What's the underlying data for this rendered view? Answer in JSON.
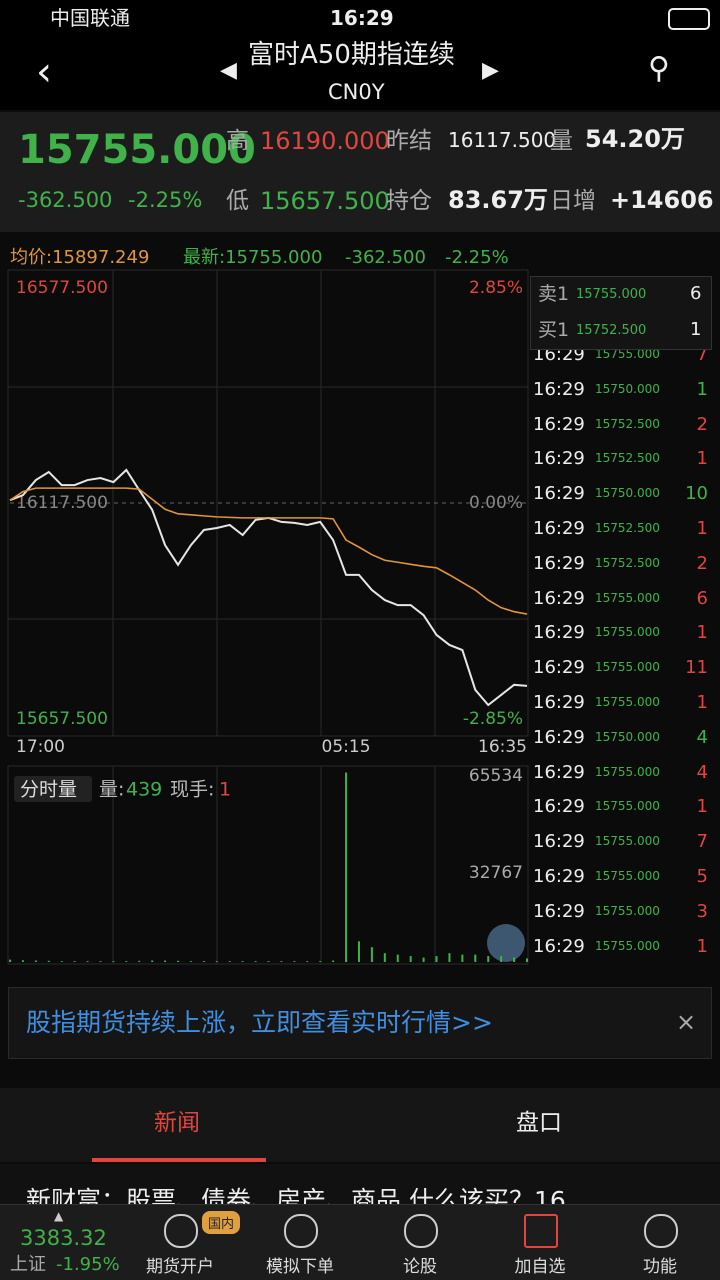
{
  "status_bar": {
    "carrier": "中国联通",
    "time": "16:29"
  },
  "header": {
    "title": "富时A50期指连续",
    "subtitle": "CN0Y"
  },
  "quote": {
    "last": "15755.000",
    "change": "-362.500",
    "change_pct": "-2.25%",
    "high_label": "高",
    "high": "16190.000",
    "prev_settle_label": "昨结",
    "prev_settle": "16117.500",
    "volume_label": "量",
    "volume": "54.20万",
    "low_label": "低",
    "low": "15657.500",
    "open_interest_label": "持仓",
    "open_interest": "83.67万",
    "daily_change_label": "日增",
    "daily_change": "+14606"
  },
  "info_line": {
    "avg": "均价:15897.249",
    "latest": "最新:15755.000",
    "change": "-362.500",
    "change_pct": "-2.25%"
  },
  "chart_data": [
    {
      "type": "line",
      "x": [
        0,
        1,
        2,
        3,
        4,
        5,
        6,
        7,
        8,
        9,
        10,
        11,
        12,
        13,
        14,
        15,
        16,
        17,
        18,
        19,
        20,
        21,
        22,
        23,
        24,
        25,
        26,
        27,
        28,
        29,
        30,
        31,
        32,
        33,
        34,
        35,
        36,
        37,
        38,
        39,
        40
      ],
      "xlim": [
        0,
        40
      ],
      "xticks": [
        {
          "value": 0,
          "label": "17:00"
        },
        {
          "value": 26,
          "label": "05:15"
        },
        {
          "value": 40,
          "label": "16:35"
        }
      ],
      "ylim": [
        15657.5,
        16577.5
      ],
      "yticks": [
        {
          "value": 15657.5,
          "label": "15657.500"
        },
        {
          "value": 16117.5,
          "label": "16117.500"
        },
        {
          "value": 16577.5,
          "label": "16577.500"
        }
      ],
      "y2lim": [
        -2.85,
        2.85
      ],
      "y2ticks": [
        {
          "value": -2.85,
          "label": "-2.85%"
        },
        {
          "value": 0,
          "label": "0.00%"
        },
        {
          "value": 2.85,
          "label": "2.85%"
        }
      ],
      "series": [
        {
          "color": "#e6e6e6",
          "values": [
            16123,
            16133,
            16163,
            16179,
            16153,
            16153,
            16163,
            16167,
            16159,
            16183,
            16143,
            16104,
            16034,
            15995,
            16034,
            16064,
            16068,
            16074,
            16054,
            16084,
            16088,
            16080,
            16078,
            16074,
            16080,
            16044,
            15975,
            15975,
            15945,
            15925,
            15915,
            15915,
            15895,
            15856,
            15836,
            15826,
            15747,
            15717,
            15737,
            15757,
            15755
          ]
        },
        {
          "color": "#e0953a",
          "values": [
            16123,
            16140,
            16147,
            16147,
            16147,
            16147,
            16147,
            16147,
            16147,
            16147,
            16145,
            16125,
            16105,
            16096,
            16094,
            16092,
            16090,
            16089,
            16088,
            16088,
            16088,
            16088,
            16088,
            16088,
            16088,
            16086,
            16044,
            16030,
            16015,
            16004,
            16000,
            15996,
            15992,
            15989,
            15975,
            15960,
            15945,
            15925,
            15910,
            15902,
            15897.249
          ]
        }
      ]
    },
    {
      "type": "bar",
      "title": "分时量",
      "volume_label": "量:",
      "volume": "439",
      "last_hand_label": "现手:",
      "last_hand": "1",
      "x": [
        0,
        1,
        2,
        3,
        4,
        5,
        6,
        7,
        8,
        9,
        10,
        11,
        12,
        13,
        14,
        15,
        16,
        17,
        18,
        19,
        20,
        21,
        22,
        23,
        24,
        25,
        26,
        27,
        28,
        29,
        30,
        31,
        32,
        33,
        34,
        35,
        36,
        37,
        38,
        39,
        40
      ],
      "xlim": [
        0,
        40
      ],
      "values": [
        800,
        600,
        500,
        400,
        300,
        300,
        300,
        300,
        300,
        300,
        400,
        500,
        500,
        400,
        300,
        300,
        300,
        300,
        300,
        300,
        300,
        300,
        300,
        300,
        300,
        500,
        64000,
        7000,
        5000,
        3000,
        2500,
        2000,
        1500,
        2000,
        3000,
        2500,
        2500,
        2000,
        2000,
        1500,
        1200
      ],
      "color": "#3fb24a",
      "ylim": [
        0,
        65534
      ],
      "yticks": [
        32767,
        65534
      ]
    }
  ],
  "order_book": {
    "sell": {
      "label": "卖1",
      "price": "15755.000",
      "qty": "6"
    },
    "buy": {
      "label": "买1",
      "price": "15752.500",
      "qty": "1"
    }
  },
  "trades": [
    {
      "time": "16:29",
      "price": "15755.000",
      "qty": "7",
      "color": "#e0463f"
    },
    {
      "time": "16:29",
      "price": "15750.000",
      "qty": "1",
      "color": "#3fb24a"
    },
    {
      "time": "16:29",
      "price": "15752.500",
      "qty": "2",
      "color": "#e0463f"
    },
    {
      "time": "16:29",
      "price": "15752.500",
      "qty": "1",
      "color": "#e0463f"
    },
    {
      "time": "16:29",
      "price": "15750.000",
      "qty": "10",
      "color": "#3fb24a"
    },
    {
      "time": "16:29",
      "price": "15752.500",
      "qty": "1",
      "color": "#e0463f"
    },
    {
      "time": "16:29",
      "price": "15752.500",
      "qty": "2",
      "color": "#e0463f"
    },
    {
      "time": "16:29",
      "price": "15755.000",
      "qty": "6",
      "color": "#e0463f"
    },
    {
      "time": "16:29",
      "price": "15755.000",
      "qty": "1",
      "color": "#e0463f"
    },
    {
      "time": "16:29",
      "price": "15755.000",
      "qty": "11",
      "color": "#e0463f"
    },
    {
      "time": "16:29",
      "price": "15755.000",
      "qty": "1",
      "color": "#e0463f"
    },
    {
      "time": "16:29",
      "price": "15750.000",
      "qty": "4",
      "color": "#3fb24a"
    },
    {
      "time": "16:29",
      "price": "15755.000",
      "qty": "4",
      "color": "#e0463f"
    },
    {
      "time": "16:29",
      "price": "15755.000",
      "qty": "1",
      "color": "#e0463f"
    },
    {
      "time": "16:29",
      "price": "15755.000",
      "qty": "7",
      "color": "#e0463f"
    },
    {
      "time": "16:29",
      "price": "15755.000",
      "qty": "5",
      "color": "#e0463f"
    },
    {
      "time": "16:29",
      "price": "15755.000",
      "qty": "3",
      "color": "#e0463f"
    },
    {
      "time": "16:29",
      "price": "15755.000",
      "qty": "1",
      "color": "#e0463f"
    }
  ],
  "banner": {
    "text": "股指期货持续上涨，立即查看实时行情>>",
    "close": "×"
  },
  "tabs": [
    "新闻",
    "盘口"
  ],
  "news": {
    "headline": "新财富：股票、债券、房产、商品 什么该买？16"
  },
  "bottom_bar": {
    "index_value": "3383.32",
    "index_name": "上证",
    "index_change": "-1.95%",
    "items": [
      {
        "label": "期货开户",
        "badge": "国内"
      },
      {
        "label": "模拟下单"
      },
      {
        "label": "论股"
      },
      {
        "label": "加自选"
      },
      {
        "label": "功能"
      }
    ]
  }
}
